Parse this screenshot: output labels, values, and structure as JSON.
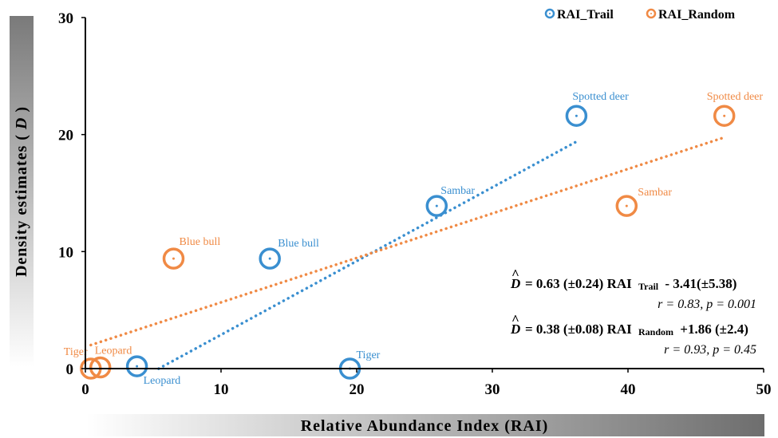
{
  "chart_data": {
    "type": "scatter",
    "xlabel": "Relative Abundance Index (RAI)",
    "ylabel": "Density estimates",
    "ylabel_symbol": "D",
    "xlim": [
      0,
      50
    ],
    "ylim": [
      0,
      30
    ],
    "xticks": [
      0,
      10,
      20,
      30,
      40,
      50
    ],
    "yticks": [
      0,
      10,
      20,
      30
    ],
    "grid": false,
    "legend_position": "top-right",
    "series": [
      {
        "name": "RAI_Trail",
        "color": "#3a8fd0",
        "points": [
          {
            "label": "Tiger",
            "x": 19.5,
            "y": 0
          },
          {
            "label": "Leopard",
            "x": 3.8,
            "y": 0.2
          },
          {
            "label": "Blue bull",
            "x": 13.6,
            "y": 9.4
          },
          {
            "label": "Sambar",
            "x": 25.9,
            "y": 13.9
          },
          {
            "label": "Spotted deer",
            "x": 36.2,
            "y": 21.6
          }
        ],
        "trendline": {
          "slope": 0.63,
          "intercept": -3.41,
          "x_range": [
            5.4,
            36.2
          ]
        }
      },
      {
        "name": "RAI_Random",
        "color": "#f08a45",
        "points": [
          {
            "label": "Tiger",
            "x": 0.4,
            "y": 0
          },
          {
            "label": "Leopard",
            "x": 1.1,
            "y": 0.1
          },
          {
            "label": "Blue bull",
            "x": 6.5,
            "y": 9.4
          },
          {
            "label": "Sambar",
            "x": 39.9,
            "y": 13.9
          },
          {
            "label": "Spotted deer",
            "x": 47.1,
            "y": 21.6
          }
        ],
        "trendline": {
          "slope": 0.38,
          "intercept": 1.86,
          "x_range": [
            0.4,
            47.1
          ]
        }
      }
    ],
    "annotations": {
      "eq_trail_prefix": "= 0.63 (±0.24) RAI",
      "eq_trail_sub": "Trail",
      "eq_trail_suffix": "- 3.41(±5.38)",
      "stat_trail": "r = 0.83, p = 0.001",
      "eq_random_prefix": "= 0.38 (±0.08) RAI",
      "eq_random_sub": "Random",
      "eq_random_suffix": "+1.86 (±2.4)",
      "stat_random": "r = 0.93, p = 0.45",
      "eq_symbol": "D"
    }
  }
}
